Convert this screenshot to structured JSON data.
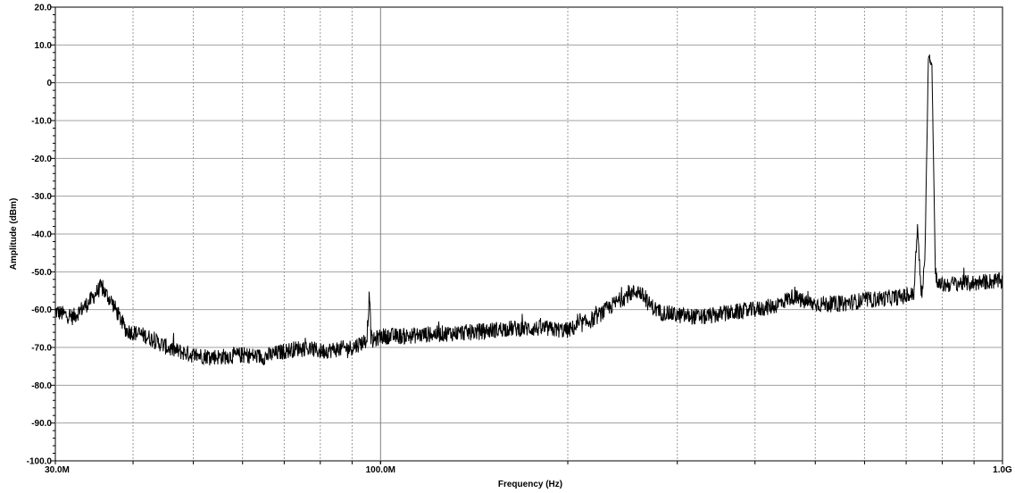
{
  "chart_data": {
    "type": "line",
    "title": "",
    "xlabel": "Frequency (Hz)",
    "ylabel": "Amplitude (dBm)",
    "x_scale": "log",
    "xlim": [
      30000000,
      1000000000
    ],
    "ylim": [
      -100,
      20
    ],
    "grid": true,
    "line_color": "#000000",
    "x_tick_labels": [
      {
        "value": 30000000,
        "label": "30.0M"
      },
      {
        "value": 100000000,
        "label": "100.0M"
      },
      {
        "value": 1000000000,
        "label": "1.0G"
      }
    ],
    "y_tick_labels": [
      "20.0",
      "10.0",
      "0",
      "-10.0",
      "-20.0",
      "-30.0",
      "-40.0",
      "-50.0",
      "-60.0",
      "-70.0",
      "-80.0",
      "-90.0",
      "-100.0"
    ],
    "series": [
      {
        "x": [
          30000000,
          32000000,
          34000000,
          35500000,
          37000000,
          39000000,
          42000000,
          46000000,
          50000000,
          55000000,
          60000000,
          65000000,
          70000000,
          75000000,
          80000000,
          85000000,
          90000000,
          95000000,
          96000000,
          96500000,
          97000000,
          100000000,
          110000000,
          120000000,
          140000000,
          160000000,
          180000000,
          200000000,
          220000000,
          240000000,
          250000000,
          260000000,
          270000000,
          280000000,
          300000000,
          330000000,
          360000000,
          400000000,
          430000000,
          460000000,
          480000000,
          500000000,
          550000000,
          600000000,
          650000000,
          700000000,
          720000000,
          730000000,
          740000000,
          750000000,
          760000000,
          770000000,
          780000000,
          790000000,
          800000000,
          850000000,
          900000000,
          950000000,
          1000000000
        ],
        "y": [
          -60.5,
          -62,
          -58,
          -54,
          -58,
          -65.5,
          -67,
          -70.5,
          -72,
          -72.5,
          -72,
          -72.5,
          -71,
          -70,
          -71,
          -70.5,
          -70,
          -68,
          -55.5,
          -67,
          -68.5,
          -67,
          -67,
          -66.5,
          -66,
          -65,
          -65,
          -65.5,
          -62.5,
          -58,
          -56,
          -55,
          -58.5,
          -60.5,
          -61.5,
          -62,
          -61,
          -60,
          -59,
          -56.5,
          -58,
          -58.5,
          -58.5,
          -57.5,
          -57,
          -56.5,
          -56,
          -38,
          -56,
          -49,
          7,
          5,
          -50,
          -53.5,
          -53.5,
          -53,
          -53,
          -52.5,
          -52.5
        ]
      }
    ]
  }
}
